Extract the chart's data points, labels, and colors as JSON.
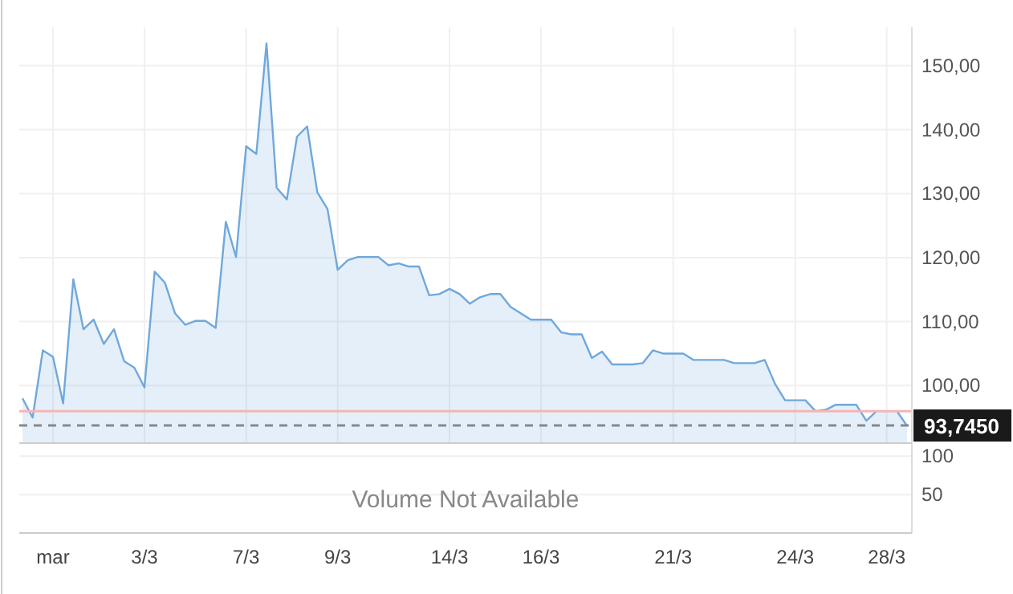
{
  "chart_data": [
    {
      "type": "area",
      "categories": [
        null,
        null,
        null,
        "mar",
        null,
        null,
        null,
        null,
        null,
        null,
        null,
        null,
        "3/3",
        null,
        null,
        null,
        null,
        null,
        null,
        null,
        null,
        null,
        "7/3",
        null,
        null,
        null,
        null,
        null,
        null,
        null,
        null,
        "9/3",
        null,
        null,
        null,
        null,
        null,
        null,
        null,
        null,
        null,
        null,
        "14/3",
        null,
        null,
        null,
        null,
        null,
        null,
        null,
        null,
        "16/3",
        null,
        null,
        null,
        null,
        null,
        null,
        null,
        null,
        null,
        null,
        null,
        null,
        "21/3",
        null,
        null,
        null,
        null,
        null,
        null,
        null,
        null,
        null,
        null,
        null,
        "24/3",
        null,
        null,
        null,
        null,
        null,
        null,
        null,
        null,
        "28/3",
        null,
        null
      ],
      "series": [
        {
          "color": "#6fa8dc",
          "values": [
            98.0,
            95.0,
            105.5,
            104.5,
            97.2,
            116.6,
            108.8,
            110.3,
            106.5,
            108.8,
            103.8,
            102.8,
            99.7,
            117.8,
            116.1,
            111.3,
            109.5,
            110.1,
            110.1,
            109.0,
            125.6,
            120.1,
            137.4,
            136.2,
            153.5,
            130.9,
            129.1,
            138.9,
            140.5,
            130.2,
            127.6,
            118.1,
            119.6,
            120.1,
            120.1,
            120.1,
            118.8,
            119.1,
            118.6,
            118.6,
            114.1,
            114.3,
            115.1,
            114.3,
            112.8,
            113.8,
            114.3,
            114.3,
            112.3,
            111.3,
            110.3,
            110.3,
            110.3,
            108.3,
            108.0,
            108.0,
            104.3,
            105.3,
            103.3,
            103.3,
            103.3,
            103.5,
            105.5,
            105.0,
            105.0,
            105.0,
            104.0,
            104.0,
            104.0,
            104.0,
            103.5,
            103.5,
            103.5,
            104.0,
            100.3,
            97.7,
            97.7,
            97.7,
            96.0,
            96.2,
            97.0,
            97.0,
            97.0,
            94.5,
            96.0,
            96.0,
            96.0,
            93.7
          ]
        }
      ],
      "ylim": [
        91,
        156
      ],
      "yticks": [
        {
          "value": 100,
          "label": "100,00"
        },
        {
          "value": 110,
          "label": "110,00"
        },
        {
          "value": 120,
          "label": "120,00"
        },
        {
          "value": 130,
          "label": "130,00"
        },
        {
          "value": 140,
          "label": "140,00"
        },
        {
          "value": 150,
          "label": "150,00"
        }
      ],
      "grid": true,
      "ref_lines": [
        {
          "axis": "y",
          "value": 96,
          "color": "#f4b6b6",
          "line_style": "solid"
        },
        {
          "axis": "y",
          "value": 93.745,
          "label": "93,7450",
          "color": "#888888",
          "line_style": "dashed"
        }
      ]
    },
    {
      "type": "bar",
      "categories": [
        null,
        null,
        null,
        null,
        null,
        null,
        null,
        null,
        null,
        null,
        null,
        null,
        null,
        null,
        null,
        null,
        null,
        null,
        null,
        null,
        null,
        null,
        null,
        null,
        null,
        null,
        null,
        null,
        null,
        null,
        null,
        null,
        null,
        null,
        null,
        null,
        null,
        null,
        null,
        null,
        null,
        null,
        null,
        null,
        null,
        null,
        null,
        null,
        null,
        null,
        null,
        null,
        null,
        null,
        null,
        null,
        null,
        null,
        null,
        null,
        null,
        null,
        null,
        null,
        null,
        null,
        null,
        null,
        null,
        null,
        null,
        null,
        null,
        null,
        null,
        null,
        null,
        null,
        null,
        null,
        null,
        null,
        null,
        null,
        null,
        null,
        null,
        null
      ],
      "ylim": [
        0,
        117
      ],
      "yticks": [
        50,
        100
      ],
      "tick_labels": "y",
      "grid": "y",
      "annotations": [
        "Volume Not Available"
      ]
    }
  ]
}
